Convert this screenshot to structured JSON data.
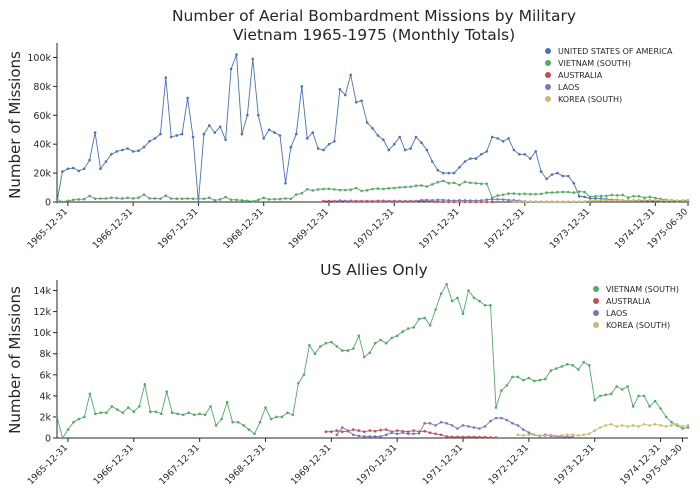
{
  "chart_data": [
    {
      "type": "line",
      "title": "Number of Aerial Bombardment Missions by Military",
      "subtitle": "Vietnam 1965-1975 (Monthly Totals)",
      "ylabel": "Number of Missions",
      "xlabel": "",
      "ylim": [
        0,
        110000
      ],
      "xrange": [
        "1965-10",
        "1975-06"
      ],
      "grid": false,
      "legend": "top-right",
      "yticks": [
        0,
        20000,
        40000,
        60000,
        80000,
        100000
      ],
      "yticklabels": [
        "0",
        "20k",
        "40k",
        "60k",
        "80k",
        "100k"
      ],
      "xticks": [
        "1965-12",
        "1966-12",
        "1967-12",
        "1968-12",
        "1969-12",
        "1970-12",
        "1971-12",
        "1972-12",
        "1973-12",
        "1974-12",
        "1975-06"
      ],
      "xticklabels": [
        "1965-12-31",
        "1966-12-31",
        "1967-12-31",
        "1968-12-31",
        "1969-12-31",
        "1970-12-31",
        "1971-12-31",
        "1972-12-31",
        "1973-12-31",
        "1974-12-31",
        "1975-06-30"
      ],
      "series": [
        {
          "name": "UNITED STATES OF AMERICA",
          "color": "#4c72b0",
          "start": "1965-10",
          "values": [
            0,
            21000,
            23000,
            23500,
            21500,
            23000,
            29000,
            48000,
            23000,
            28000,
            33000,
            35000,
            36000,
            37000,
            35000,
            35500,
            38000,
            42000,
            44000,
            47000,
            86000,
            45000,
            46000,
            47000,
            72000,
            45000,
            0,
            47000,
            53000,
            48000,
            52000,
            43000,
            92000,
            102000,
            47000,
            60000,
            99000,
            60000,
            44000,
            50000,
            48000,
            46000,
            13000,
            38000,
            47000,
            80000,
            44000,
            48000,
            37000,
            36000,
            40000,
            42000,
            78000,
            74000,
            88000,
            69000,
            70000,
            55000,
            51000,
            46000,
            43000,
            36000,
            40000,
            45000,
            36000,
            37000,
            45000,
            41000,
            36000,
            28000,
            22000,
            20000,
            20000,
            20000,
            24000,
            28000,
            30000,
            30000,
            33000,
            35000,
            45000,
            44000,
            42000,
            44000,
            36000,
            33000,
            33000,
            30000,
            35000,
            21000,
            16000,
            19000,
            20000,
            18000,
            18000,
            13000,
            4000,
            3500,
            2500,
            2500,
            2200,
            2000,
            1500,
            1500,
            1200,
            1000,
            1000,
            900,
            800,
            700,
            600,
            500,
            500,
            400,
            400,
            300,
            300
          ]
        },
        {
          "name": "VIETNAM (SOUTH)",
          "color": "#55a868",
          "start": "1965-10",
          "values": [
            2000,
            0,
            800,
            1500,
            1800,
            2000,
            4200,
            2300,
            2400,
            2400,
            3000,
            2700,
            2400,
            2900,
            2500,
            3000,
            5100,
            2500,
            2500,
            2300,
            4400,
            2400,
            2300,
            2200,
            2400,
            2200,
            2300,
            2200,
            3000,
            1200,
            1800,
            3400,
            1500,
            1500,
            1200,
            800,
            400,
            1500,
            2900,
            1800,
            2000,
            2000,
            2400,
            2200,
            5200,
            6000,
            8800,
            8000,
            8700,
            9000,
            9100,
            8700,
            8300,
            8300,
            8500,
            9700,
            7700,
            8100,
            9000,
            9300,
            9000,
            9500,
            9700,
            10100,
            10400,
            10500,
            11300,
            11400,
            10700,
            12200,
            13700,
            14600,
            13000,
            13300,
            11800,
            14000,
            13300,
            13000,
            12600,
            12600,
            2900,
            4500,
            5000,
            5800,
            5800,
            5500,
            5700,
            5400,
            5500,
            5600,
            6400,
            6600,
            6800,
            7000,
            6900,
            6500,
            7200,
            6900,
            3600,
            4000,
            4100,
            4200,
            4900,
            4600,
            4900,
            3000,
            4000,
            4000,
            3000,
            3500,
            2800,
            2000,
            1500,
            1200,
            900,
            1000,
            700
          ]
        },
        {
          "name": "AUSTRALIA",
          "color": "#c44e52",
          "start": "1969-11",
          "values": [
            600,
            600,
            700,
            600,
            650,
            800,
            700,
            600,
            700,
            650,
            750,
            800,
            600,
            700,
            650,
            600,
            700,
            600,
            650,
            500,
            400,
            300,
            150,
            100,
            100,
            100,
            100,
            100,
            80,
            80,
            60,
            50
          ]
        },
        {
          "name": "LAOS",
          "color": "#8172b2",
          "start": "1970-01",
          "values": [
            300,
            1000,
            700,
            300,
            200,
            150,
            150,
            150,
            150,
            300,
            500,
            400,
            500,
            400,
            400,
            450,
            1400,
            1400,
            1200,
            1500,
            1400,
            1200,
            900,
            1200,
            1100,
            1000,
            900,
            1100,
            1600,
            1900,
            1900,
            1700,
            1400,
            1200,
            800,
            500,
            300,
            200,
            300,
            200,
            150,
            100,
            100,
            100
          ]
        },
        {
          "name": "KOREA (SOUTH)",
          "color": "#ccb974",
          "start": "1972-10",
          "values": [
            300,
            250,
            300,
            300,
            250,
            200,
            300,
            200,
            250,
            300,
            300,
            250,
            300,
            400,
            700,
            1000,
            1200,
            1300,
            1100,
            1200,
            1100,
            1200,
            1100,
            1300,
            1200,
            1300,
            1200,
            1100,
            1200,
            1300,
            1100,
            1200,
            1400,
            1100,
            1200,
            1300
          ]
        }
      ]
    },
    {
      "type": "line",
      "title": "US Allies Only",
      "ylabel": "Number of Missions",
      "xlabel": "",
      "ylim": [
        0,
        15000
      ],
      "xrange": [
        "1965-10",
        "1975-05"
      ],
      "grid": false,
      "legend": "top-right",
      "yticks": [
        0,
        2000,
        4000,
        6000,
        8000,
        10000,
        12000,
        14000
      ],
      "yticklabels": [
        "0",
        "2k",
        "4k",
        "6k",
        "8k",
        "10k",
        "12k",
        "14k"
      ],
      "xticks": [
        "1965-12",
        "1966-12",
        "1967-12",
        "1968-12",
        "1969-12",
        "1970-12",
        "1971-12",
        "1972-12",
        "1973-12",
        "1974-12",
        "1975-04"
      ],
      "xticklabels": [
        "1965-12-31",
        "1966-12-31",
        "1967-12-31",
        "1968-12-31",
        "1969-12-31",
        "1970-12-31",
        "1971-12-31",
        "1972-12-31",
        "1973-12-31",
        "1974-12-31",
        "1975-04-30"
      ],
      "series_from": [
        1,
        2,
        3,
        4
      ]
    }
  ]
}
